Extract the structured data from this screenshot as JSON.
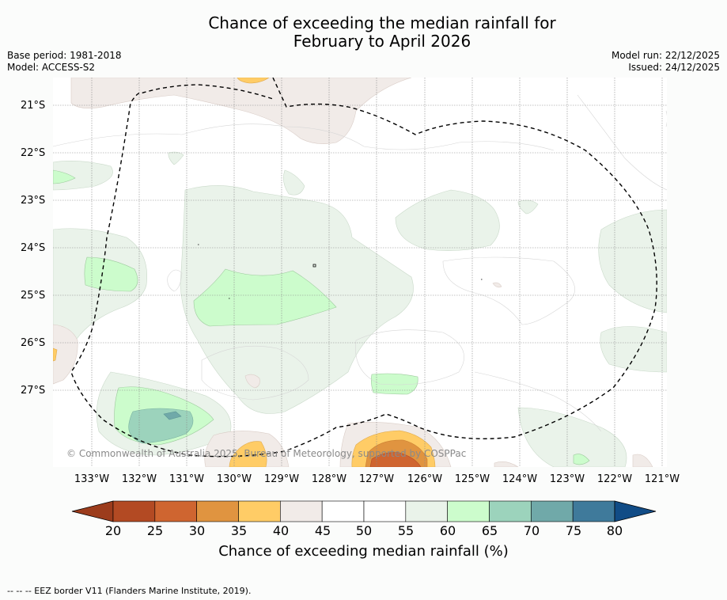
{
  "title": {
    "line1": "Chance of exceeding the median rainfall for",
    "line2": "February to April 2026"
  },
  "meta_left": {
    "base_period": "Base period: 1981-2018",
    "model": "Model: ACCESS-S2"
  },
  "meta_right": {
    "model_run": "Model run: 22/12/2025",
    "issued": "Issued: 24/12/2025"
  },
  "lat_labels": [
    "21°S",
    "22°S",
    "23°S",
    "24°S",
    "25°S",
    "26°S",
    "27°S"
  ],
  "lon_labels": [
    "133°W",
    "132°W",
    "131°W",
    "130°W",
    "129°W",
    "128°W",
    "127°W",
    "126°W",
    "125°W",
    "124°W",
    "123°W",
    "122°W",
    "121°W"
  ],
  "copyright": "© Commonwealth of Australia 2025, Bureau of Meteorology, supported by COSPPac",
  "colorbar": {
    "ticks": [
      "20",
      "25",
      "30",
      "35",
      "40",
      "45",
      "50",
      "55",
      "60",
      "65",
      "70",
      "75",
      "80"
    ],
    "label": "Chance of exceeding median rainfall (%)",
    "colors": [
      "#9c3c1c",
      "#b34a23",
      "#cf6530",
      "#e09440",
      "#ffcc66",
      "#f1ebe8",
      "#ffffff",
      "#ffffff",
      "#eaf3ea",
      "#ccfccc",
      "#9cd3bc",
      "#70a9a9",
      "#3f7a9b",
      "#114c86"
    ]
  },
  "footnote": "-- -- -- EEZ border V11 (Flanders Marine Institute, 2019)."
}
